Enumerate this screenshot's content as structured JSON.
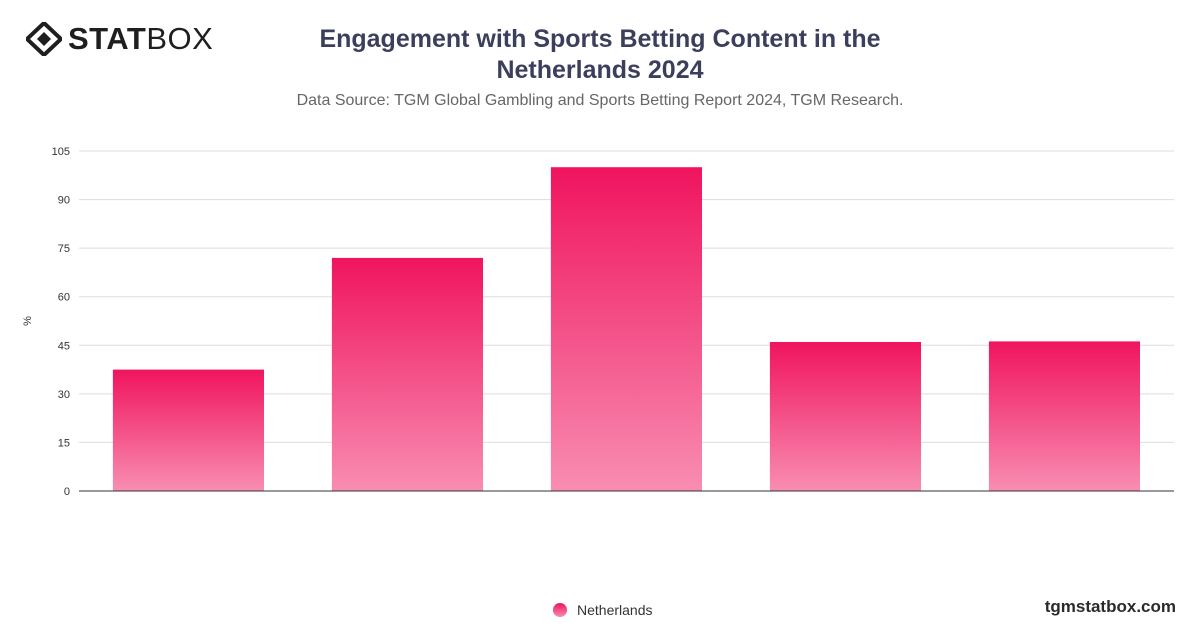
{
  "brand": {
    "logo_bold": "STAT",
    "logo_thin": "BOX",
    "site": "tgmstatbox.com"
  },
  "colors": {
    "bar_top": "#f0145f",
    "bar_bottom": "#f88db2",
    "grid": "#dddddd",
    "axis": "#333333"
  },
  "chart_data": {
    "type": "bar",
    "title": "Engagement with Sports Betting Content in the Netherlands 2024",
    "subtitle": "Data Source: TGM Global Gambling and Sports Betting Report 2024, TGM Research.",
    "xlabel": "",
    "ylabel": "%",
    "ylim": [
      0,
      105
    ],
    "yticks": [
      0,
      15,
      30,
      45,
      60,
      75,
      90,
      105
    ],
    "grid": true,
    "legend_position": "bottom-center",
    "categories": [
      "",
      "",
      "",
      "",
      ""
    ],
    "series": [
      {
        "name": "Netherlands",
        "values": [
          37.5,
          72,
          100,
          46,
          46.2
        ]
      }
    ]
  }
}
